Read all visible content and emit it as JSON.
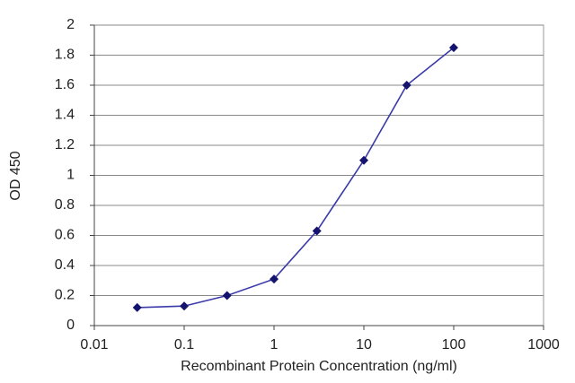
{
  "chart_data": {
    "type": "line",
    "x_label": "Recombinant Protein Concentration (ng/ml)",
    "y_label": "OD 450",
    "x": [
      0.03,
      0.1,
      0.3,
      1,
      3,
      10,
      30,
      100
    ],
    "series": [
      {
        "color": "#3a3aa8",
        "values": [
          0.12,
          0.13,
          0.2,
          0.31,
          0.63,
          1.1,
          1.6,
          1.85
        ]
      }
    ],
    "xscale": "log",
    "xlim": [
      0.01,
      1000
    ],
    "xticks": [
      0.01,
      0.1,
      1,
      10,
      100,
      1000
    ],
    "ylim": [
      0,
      2
    ],
    "yticks": [
      0,
      0.2,
      0.4,
      0.6,
      0.8,
      1,
      1.2,
      1.4,
      1.6,
      1.8,
      2
    ],
    "grid": true
  }
}
